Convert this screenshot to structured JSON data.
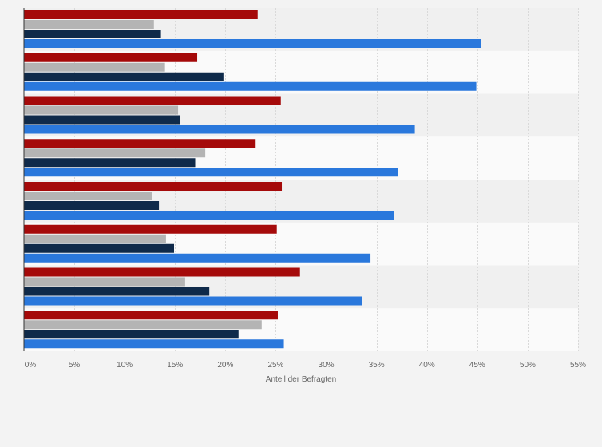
{
  "chart_data": {
    "type": "bar",
    "orientation": "horizontal",
    "xlabel": "Anteil der Befragten",
    "xlim": [
      0,
      55
    ],
    "x_ticks": [
      0,
      5,
      10,
      15,
      20,
      25,
      30,
      35,
      40,
      45,
      50,
      55
    ],
    "x_tick_labels": [
      "0%",
      "5%",
      "10%",
      "15%",
      "20%",
      "25%",
      "30%",
      "35%",
      "40%",
      "45%",
      "50%",
      "55%"
    ],
    "grid": true,
    "legend": "none",
    "category_count": 8,
    "series": [
      {
        "color": "#a50a0a",
        "values": [
          23.2,
          17.2,
          25.5,
          23.0,
          25.6,
          25.1,
          27.4,
          25.2
        ]
      },
      {
        "color": "#b4b4b4",
        "values": [
          12.9,
          14.0,
          15.3,
          18.0,
          12.7,
          14.1,
          16.0,
          23.6
        ]
      },
      {
        "color": "#0f2a4a",
        "values": [
          13.6,
          19.8,
          15.5,
          17.0,
          13.4,
          14.9,
          18.4,
          21.3
        ]
      },
      {
        "color": "#2a78dc",
        "values": [
          45.4,
          44.9,
          38.8,
          37.1,
          36.7,
          34.4,
          33.6,
          25.8
        ]
      }
    ]
  },
  "colors": {
    "page_background": "#f3f3f3",
    "plot_band_dark": "#f0f0f0",
    "plot_band_light": "#fafafa",
    "gridline": "#d9d9d9",
    "axis_line": "#333333"
  }
}
